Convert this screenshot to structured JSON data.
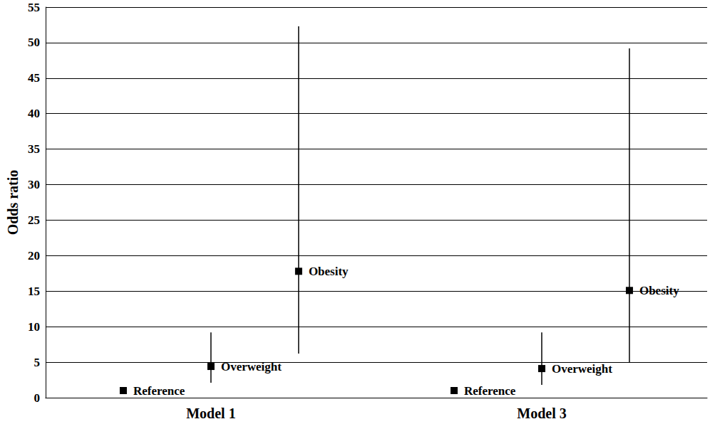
{
  "chart_data": {
    "type": "scatter",
    "y_label": "Odds ratio",
    "categories": [
      "Model 1",
      "Model 3"
    ],
    "series": [
      {
        "name": "Reference",
        "values": [
          1,
          1
        ]
      },
      {
        "name": "Overweight",
        "values": [
          4.4,
          4.1
        ],
        "ci_low": [
          2.1,
          1.8
        ],
        "ci_high": [
          9.2,
          9.2
        ]
      },
      {
        "name": "Obesity",
        "values": [
          17.8,
          15.1
        ],
        "ci_low": [
          6.2,
          5.0
        ],
        "ci_high": [
          52.3,
          49.2
        ]
      }
    ],
    "color": "#000000",
    "marker": "square",
    "ylim": [
      0,
      55
    ],
    "yticks": [
      0,
      5,
      10,
      15,
      20,
      25,
      30,
      35,
      40,
      45,
      50,
      55
    ],
    "grid": true
  }
}
